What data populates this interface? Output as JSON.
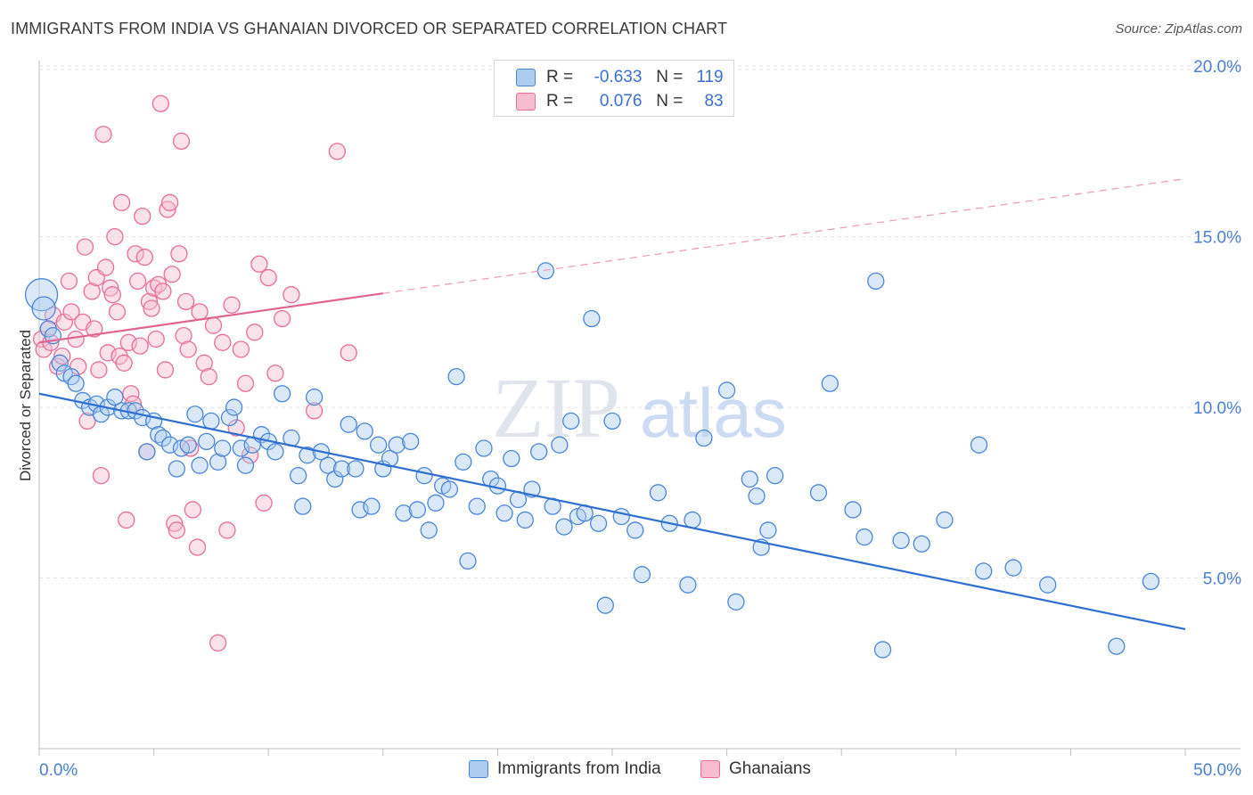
{
  "title": "IMMIGRANTS FROM INDIA VS GHANAIAN DIVORCED OR SEPARATED CORRELATION CHART",
  "source": "Source: ZipAtlas.com",
  "colors": {
    "india": "#4a86d8",
    "india_fill": "#aecbf0",
    "ghana": "#e96d96",
    "ghana_fill": "#f7bcd0",
    "axis_text": "#4a7fd1"
  },
  "legend": {
    "india": {
      "r_label": "R =",
      "r_value": "-0.633",
      "n_label": "N =",
      "n_value": "119"
    },
    "ghana": {
      "r_label": "R =",
      "r_value": "0.076",
      "n_label": "N =",
      "n_value": "83"
    }
  },
  "watermark": {
    "zip": "ZIP",
    "atlas": "atlas"
  },
  "chart_data": {
    "type": "scatter",
    "xlabel": "",
    "ylabel": "Divorced or Separated",
    "xlim": [
      0,
      50
    ],
    "ylim": [
      0,
      20.5
    ],
    "x_tick_labels": [
      "0.0%",
      "50.0%"
    ],
    "y_ticks": [
      5,
      10,
      15,
      20
    ],
    "y_tick_labels": [
      "5.0%",
      "10.0%",
      "15.0%",
      "20.0%"
    ],
    "grid": true,
    "legend_position": "top-center",
    "series": [
      {
        "name": "Immigrants from India",
        "trend": {
          "x0": 0,
          "y0": 10.4,
          "x1": 50,
          "y1": 3.5,
          "dashed_from": null
        },
        "points": [
          [
            0.1,
            13.3
          ],
          [
            0.2,
            12.9
          ],
          [
            0.4,
            12.3
          ],
          [
            0.6,
            12.1
          ],
          [
            0.9,
            11.3
          ],
          [
            1.1,
            11.0
          ],
          [
            1.4,
            10.9
          ],
          [
            1.6,
            10.7
          ],
          [
            1.9,
            10.2
          ],
          [
            2.2,
            10.0
          ],
          [
            2.5,
            10.1
          ],
          [
            2.7,
            9.8
          ],
          [
            3.0,
            10.0
          ],
          [
            3.3,
            10.3
          ],
          [
            3.6,
            9.9
          ],
          [
            3.9,
            9.9
          ],
          [
            4.2,
            9.9
          ],
          [
            4.5,
            9.7
          ],
          [
            4.7,
            8.7
          ],
          [
            5.0,
            9.6
          ],
          [
            5.2,
            9.2
          ],
          [
            5.4,
            9.1
          ],
          [
            5.7,
            8.9
          ],
          [
            6.0,
            8.2
          ],
          [
            6.2,
            8.8
          ],
          [
            6.5,
            8.9
          ],
          [
            6.8,
            9.8
          ],
          [
            7.0,
            8.3
          ],
          [
            7.3,
            9.0
          ],
          [
            7.5,
            9.6
          ],
          [
            7.8,
            8.4
          ],
          [
            8.0,
            8.8
          ],
          [
            8.3,
            9.7
          ],
          [
            8.5,
            10.0
          ],
          [
            8.8,
            8.8
          ],
          [
            9.0,
            8.3
          ],
          [
            9.3,
            8.9
          ],
          [
            9.7,
            9.2
          ],
          [
            10.0,
            9.0
          ],
          [
            10.3,
            8.7
          ],
          [
            10.6,
            10.4
          ],
          [
            11.0,
            9.1
          ],
          [
            11.3,
            8.0
          ],
          [
            11.5,
            7.1
          ],
          [
            11.7,
            8.6
          ],
          [
            12.0,
            10.3
          ],
          [
            12.3,
            8.7
          ],
          [
            12.6,
            8.3
          ],
          [
            12.9,
            7.9
          ],
          [
            13.2,
            8.2
          ],
          [
            13.5,
            9.5
          ],
          [
            13.8,
            8.2
          ],
          [
            14.0,
            7.0
          ],
          [
            14.2,
            9.3
          ],
          [
            14.5,
            7.1
          ],
          [
            14.8,
            8.9
          ],
          [
            15.0,
            8.2
          ],
          [
            15.3,
            8.5
          ],
          [
            15.6,
            8.9
          ],
          [
            15.9,
            6.9
          ],
          [
            16.2,
            9.0
          ],
          [
            16.5,
            7.0
          ],
          [
            16.8,
            8.0
          ],
          [
            17.0,
            6.4
          ],
          [
            17.3,
            7.2
          ],
          [
            17.6,
            7.7
          ],
          [
            17.9,
            7.6
          ],
          [
            18.2,
            10.9
          ],
          [
            18.5,
            8.4
          ],
          [
            18.7,
            5.5
          ],
          [
            19.1,
            7.1
          ],
          [
            19.4,
            8.8
          ],
          [
            19.7,
            7.9
          ],
          [
            20.0,
            7.7
          ],
          [
            20.3,
            6.9
          ],
          [
            20.6,
            8.5
          ],
          [
            20.9,
            7.3
          ],
          [
            21.2,
            6.7
          ],
          [
            21.5,
            7.6
          ],
          [
            21.8,
            8.7
          ],
          [
            22.1,
            14.0
          ],
          [
            22.4,
            7.1
          ],
          [
            22.7,
            8.9
          ],
          [
            22.9,
            6.5
          ],
          [
            23.2,
            9.6
          ],
          [
            23.5,
            6.8
          ],
          [
            23.8,
            6.9
          ],
          [
            24.1,
            12.6
          ],
          [
            24.4,
            6.6
          ],
          [
            24.7,
            4.2
          ],
          [
            25.0,
            9.6
          ],
          [
            25.4,
            6.8
          ],
          [
            26.0,
            6.4
          ],
          [
            26.3,
            5.1
          ],
          [
            27.0,
            7.5
          ],
          [
            27.5,
            6.6
          ],
          [
            28.3,
            4.8
          ],
          [
            28.5,
            6.7
          ],
          [
            29.0,
            9.1
          ],
          [
            30.0,
            10.5
          ],
          [
            30.4,
            4.3
          ],
          [
            31.0,
            7.9
          ],
          [
            31.3,
            7.4
          ],
          [
            31.5,
            5.9
          ],
          [
            31.8,
            6.4
          ],
          [
            32.1,
            8.0
          ],
          [
            34.0,
            7.5
          ],
          [
            34.5,
            10.7
          ],
          [
            35.5,
            7.0
          ],
          [
            36.0,
            6.2
          ],
          [
            36.5,
            13.7
          ],
          [
            36.8,
            2.9
          ],
          [
            37.6,
            6.1
          ],
          [
            38.5,
            6.0
          ],
          [
            39.5,
            6.7
          ],
          [
            41.0,
            8.9
          ],
          [
            41.2,
            5.2
          ],
          [
            42.5,
            5.3
          ],
          [
            44.0,
            4.8
          ],
          [
            47.0,
            3.0
          ],
          [
            48.5,
            4.9
          ]
        ]
      },
      {
        "name": "Ghanaians",
        "trend": {
          "x0": 0,
          "y0": 11.9,
          "x1": 50,
          "y1": 16.7,
          "dashed_from": 15
        },
        "points": [
          [
            0.1,
            12.0
          ],
          [
            0.2,
            11.7
          ],
          [
            0.4,
            12.3
          ],
          [
            0.5,
            11.9
          ],
          [
            0.6,
            12.7
          ],
          [
            0.8,
            11.2
          ],
          [
            1.0,
            11.5
          ],
          [
            1.1,
            12.5
          ],
          [
            1.3,
            13.7
          ],
          [
            1.4,
            12.8
          ],
          [
            1.6,
            12.0
          ],
          [
            1.7,
            11.2
          ],
          [
            1.9,
            12.5
          ],
          [
            2.0,
            14.7
          ],
          [
            2.1,
            9.6
          ],
          [
            2.3,
            13.4
          ],
          [
            2.4,
            12.3
          ],
          [
            2.5,
            13.8
          ],
          [
            2.6,
            11.1
          ],
          [
            2.7,
            8.0
          ],
          [
            2.8,
            18.0
          ],
          [
            2.9,
            14.1
          ],
          [
            3.0,
            11.6
          ],
          [
            3.1,
            13.5
          ],
          [
            3.2,
            13.3
          ],
          [
            3.3,
            15.0
          ],
          [
            3.4,
            12.8
          ],
          [
            3.5,
            11.5
          ],
          [
            3.6,
            16.0
          ],
          [
            3.7,
            11.3
          ],
          [
            3.8,
            6.7
          ],
          [
            3.9,
            11.9
          ],
          [
            4.0,
            10.4
          ],
          [
            4.1,
            10.1
          ],
          [
            4.2,
            14.5
          ],
          [
            4.3,
            13.7
          ],
          [
            4.4,
            11.8
          ],
          [
            4.5,
            15.6
          ],
          [
            4.6,
            14.4
          ],
          [
            4.7,
            8.7
          ],
          [
            4.8,
            13.1
          ],
          [
            4.9,
            12.9
          ],
          [
            5.0,
            13.5
          ],
          [
            5.1,
            12.0
          ],
          [
            5.2,
            13.6
          ],
          [
            5.3,
            18.9
          ],
          [
            5.4,
            13.4
          ],
          [
            5.5,
            11.1
          ],
          [
            5.6,
            15.8
          ],
          [
            5.7,
            16.0
          ],
          [
            5.8,
            13.9
          ],
          [
            5.9,
            6.6
          ],
          [
            6.0,
            6.4
          ],
          [
            6.1,
            14.5
          ],
          [
            6.2,
            17.8
          ],
          [
            6.3,
            12.1
          ],
          [
            6.4,
            13.1
          ],
          [
            6.5,
            11.7
          ],
          [
            6.6,
            8.8
          ],
          [
            6.7,
            7.0
          ],
          [
            6.9,
            5.9
          ],
          [
            7.0,
            12.8
          ],
          [
            7.2,
            11.3
          ],
          [
            7.4,
            10.9
          ],
          [
            7.6,
            12.4
          ],
          [
            7.8,
            3.1
          ],
          [
            8.0,
            11.9
          ],
          [
            8.2,
            6.4
          ],
          [
            8.4,
            13.0
          ],
          [
            8.6,
            9.4
          ],
          [
            8.8,
            11.7
          ],
          [
            9.0,
            10.7
          ],
          [
            9.2,
            8.6
          ],
          [
            9.4,
            12.2
          ],
          [
            9.6,
            14.2
          ],
          [
            9.8,
            7.2
          ],
          [
            10.0,
            13.8
          ],
          [
            10.3,
            11.0
          ],
          [
            10.6,
            12.6
          ],
          [
            11.0,
            13.3
          ],
          [
            12.0,
            9.9
          ],
          [
            13.0,
            17.5
          ],
          [
            13.5,
            11.6
          ]
        ]
      }
    ]
  },
  "bottom_legend": {
    "india": "Immigrants from India",
    "ghana": "Ghanaians"
  }
}
